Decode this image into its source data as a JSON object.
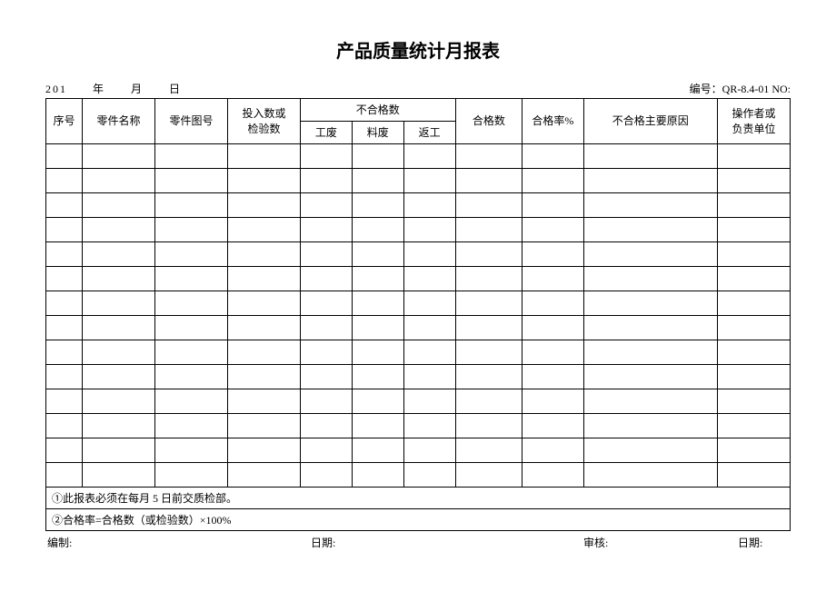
{
  "title": "产品质量统计月报表",
  "dateLine": "201　　年　　月　　日",
  "docNo": "编号：QR-8.4-01  NO:",
  "headers": {
    "seq": "序号",
    "partName": "零件名称",
    "drawingNo": "零件图号",
    "inputCount": "投入数或\n检验数",
    "ngGroup": "不合格数",
    "scrap": "工废",
    "materialScrap": "料废",
    "rework": "返工",
    "passCount": "合格数",
    "passRate": "合格率%",
    "ngReason": "不合格主要原因",
    "operator": "操作者或\n负责单位"
  },
  "dataRows": 14,
  "notes": {
    "note1": "①此报表必须在每月 5 日前交质检部。",
    "note2": "②合格率=合格数（或检验数）×100%"
  },
  "footer": {
    "prepare": "编制:",
    "date1": "日期:",
    "review": "审核:",
    "date2": "日期:"
  },
  "style": {
    "background": "#ffffff",
    "border": "#000000",
    "text": "#000000",
    "titleFontSize": 20,
    "bodyFontSize": 12
  }
}
